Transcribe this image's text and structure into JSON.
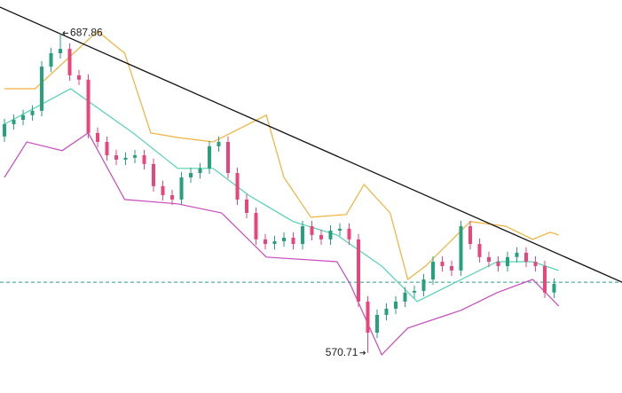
{
  "chart_data": {
    "type": "candlestick",
    "xlim": [
      -0.48,
      66.29
    ],
    "ylim": [
      556,
      700
    ],
    "up_color": "#26a17b",
    "down_color": "#e8457a",
    "open": [
      650,
      654.5,
      656.1,
      657.8,
      659.4,
      675.6,
      680.5,
      682.1,
      672.4,
      670.8,
      651.3,
      648.0,
      643.1,
      641.5,
      642.2,
      643.1,
      639.9,
      631.8,
      628.5,
      626.9,
      635.0,
      636.6,
      638.3,
      646.4,
      648.0,
      636.6,
      626.9,
      622.0,
      612.3,
      610.6,
      611.6,
      612.9,
      610.6,
      617.1,
      613.9,
      612.3,
      615.5,
      616.2,
      612.3,
      589.5,
      578.1,
      584.6,
      586.9,
      589.5,
      592.8,
      593.4,
      597.6,
      604.1,
      602.5,
      600.9,
      617.1,
      610.6,
      605.8,
      604.1,
      602.5,
      605.8,
      607.4,
      604.1,
      602.5,
      592.8
    ],
    "high": [
      656.5,
      658.1,
      659.8,
      661.4,
      677.6,
      682.5,
      687.86,
      684.1,
      674.4,
      672.8,
      653.3,
      650.0,
      645.1,
      644.2,
      645.1,
      645.1,
      641.9,
      633.8,
      630.5,
      637.0,
      638.6,
      640.3,
      648.4,
      650.0,
      650.0,
      638.6,
      628.9,
      624.0,
      614.3,
      613.6,
      614.9,
      614.9,
      619.1,
      619.1,
      615.9,
      617.5,
      618.2,
      618.2,
      614.3,
      591.5,
      586.6,
      588.9,
      591.5,
      594.8,
      595.4,
      599.6,
      606.1,
      606.1,
      604.5,
      619.1,
      619.1,
      612.6,
      607.8,
      606.1,
      607.8,
      609.4,
      609.4,
      606.1,
      604.5,
      598.0
    ],
    "low": [
      648.0,
      652.5,
      654.1,
      655.8,
      657.4,
      673.6,
      678.5,
      670.4,
      668.8,
      649.3,
      646.0,
      641.1,
      639.5,
      639.5,
      640.2,
      637.9,
      629.8,
      626.5,
      624.9,
      624.9,
      633.0,
      634.6,
      636.3,
      644.4,
      634.6,
      624.9,
      620.0,
      610.3,
      608.6,
      608.6,
      609.6,
      608.6,
      608.6,
      611.9,
      610.3,
      610.3,
      613.5,
      610.3,
      587.5,
      570.71,
      576.1,
      582.6,
      584.9,
      587.5,
      590.8,
      591.4,
      595.6,
      600.5,
      598.9,
      598.9,
      608.6,
      603.8,
      602.1,
      600.5,
      600.5,
      603.8,
      602.1,
      600.5,
      590.8,
      590.8
    ],
    "close": [
      654.5,
      656.1,
      657.8,
      659.4,
      675.6,
      680.5,
      682.1,
      672.4,
      670.8,
      651.3,
      648.0,
      643.1,
      641.5,
      642.2,
      643.1,
      639.9,
      631.8,
      628.5,
      626.9,
      635.0,
      636.6,
      638.3,
      646.4,
      648.0,
      636.6,
      626.9,
      622.0,
      612.3,
      610.6,
      611.6,
      612.9,
      610.6,
      617.1,
      613.9,
      612.3,
      615.5,
      616.2,
      612.3,
      589.5,
      578.1,
      584.6,
      586.9,
      589.5,
      592.8,
      593.4,
      597.6,
      604.1,
      602.5,
      600.9,
      617.1,
      610.6,
      605.8,
      604.1,
      602.5,
      605.8,
      607.4,
      604.1,
      602.5,
      592.8,
      596.0
    ],
    "lines": [
      {
        "color": "#f0b23a",
        "x": [
          0,
          3.3,
          10,
          12.9,
          15.7,
          18.6,
          22.4,
          28.1,
          30,
          32.9,
          36.7,
          38.6,
          41.4,
          43.3,
          45.2,
          48.1,
          50,
          53.8,
          56.7,
          58.6,
          59.5
        ],
        "values": [
          667.5,
          667.5,
          688.6,
          680.5,
          651.3,
          649.6,
          648.0,
          657.8,
          635.0,
          620.4,
          621.4,
          632.4,
          622.0,
          597.6,
          602.5,
          612.3,
          618.8,
          617.1,
          612.3,
          614.9,
          613.9
        ]
      },
      {
        "color": "#4fd3b4",
        "x": [
          0,
          7.1,
          13.8,
          18.6,
          22.4,
          26.2,
          31,
          35.7,
          40.5,
          44.3,
          48.1,
          52.9,
          56.7,
          59.5
        ],
        "values": [
          654.5,
          667.5,
          651.3,
          638.3,
          638.3,
          628.5,
          618.8,
          613.9,
          602.5,
          589.5,
          596.0,
          604.1,
          604.1,
          600.9
        ]
      },
      {
        "color": "#c94bbd",
        "x": [
          0,
          2.4,
          6.2,
          9,
          12.9,
          18.6,
          23.3,
          28.1,
          35.7,
          37.1,
          40.5,
          43.3,
          49,
          52.9,
          56.7,
          59.5
        ],
        "values": [
          635.0,
          648.0,
          644.8,
          651.3,
          626.9,
          625.3,
          622.0,
          605.8,
          604.1,
          596.0,
          570.0,
          579.8,
          586.3,
          592.8,
          597.6,
          587.9
        ]
      },
      {
        "color": "#111111",
        "x": [
          -0.5,
          66.3
        ],
        "values": [
          697.4,
          596.6
        ]
      }
    ],
    "hline": {
      "value": 596.6,
      "color": "#2a9d8f"
    }
  }
}
